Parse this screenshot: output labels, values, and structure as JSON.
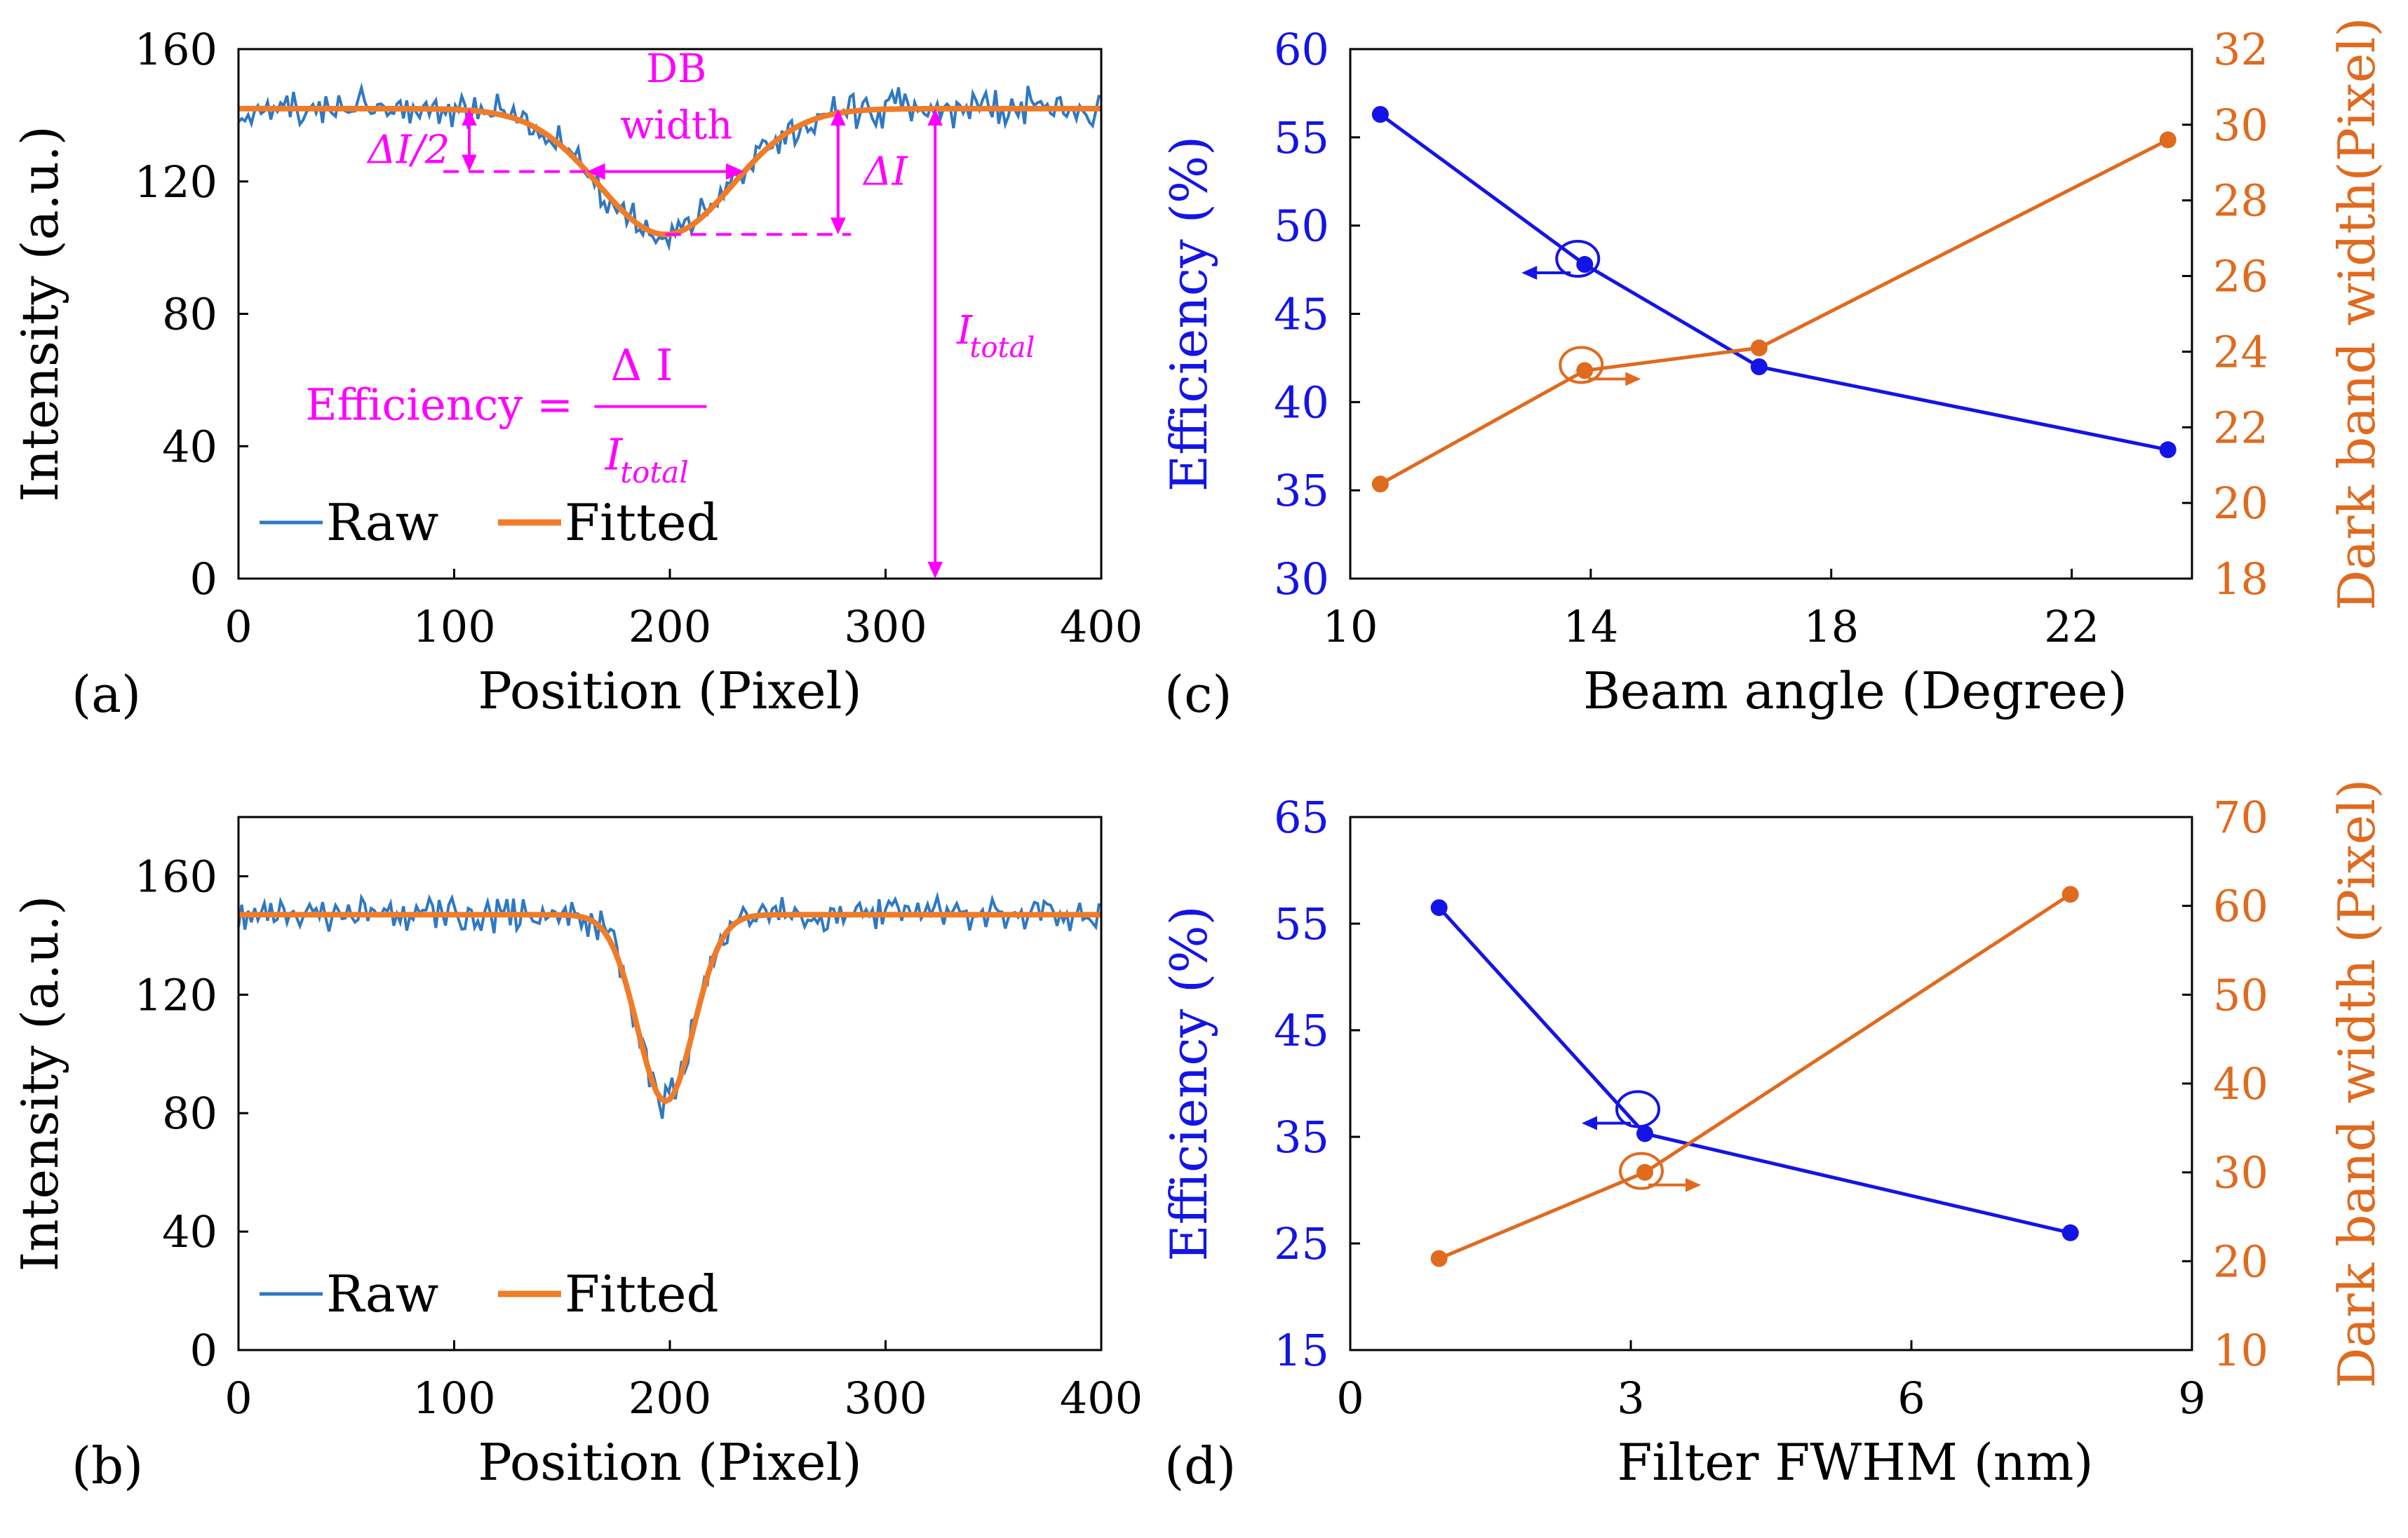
{
  "colors": {
    "raw": "#2f78c4",
    "fitted": "#f07c28",
    "efficiency": "#1414e6",
    "darkband": "#e06a1e",
    "annotation": "#ff00ff",
    "axis": "#000000"
  },
  "chart_data": [
    {
      "id": "a",
      "type": "line",
      "panel_label": "(a)",
      "xlabel": "Position (Pixel)",
      "ylabel": "Intensity (a.u.)",
      "xlim": [
        0,
        400
      ],
      "ylim": [
        0,
        160
      ],
      "xticks": [
        0,
        100,
        200,
        300,
        400
      ],
      "yticks": [
        0,
        40,
        80,
        120,
        160
      ],
      "legend": {
        "placement": "bottom-left",
        "entries": [
          "Raw",
          "Fitted"
        ]
      },
      "series": [
        {
          "name": "Raw",
          "noise_amplitude": 7
        },
        {
          "name": "Fitted",
          "baseline": 142,
          "minimum": 104,
          "center": 198,
          "sigma": 31
        }
      ],
      "annotations": {
        "db_label_1": "DB",
        "db_label_2": "width",
        "half_delta": "ΔI/2",
        "delta": "ΔI",
        "total": "I",
        "total_sub": "total",
        "efficiency_label": "Efficiency =",
        "numerator": "Δ I",
        "denominator": "I",
        "denominator_sub": "total"
      }
    },
    {
      "id": "b",
      "type": "line",
      "panel_label": "(b)",
      "xlabel": "Position (Pixel)",
      "ylabel": "Intensity (a.u.)",
      "xlim": [
        0,
        400
      ],
      "ylim": [
        0,
        180
      ],
      "xticks": [
        0,
        100,
        200,
        300,
        400
      ],
      "yticks": [
        0,
        40,
        80,
        120,
        160
      ],
      "legend": {
        "placement": "bottom-left",
        "entries": [
          "Raw",
          "Fitted"
        ]
      },
      "series": [
        {
          "name": "Raw",
          "noise_amplitude": 7
        },
        {
          "name": "Fitted",
          "baseline": 147,
          "minimum": 84,
          "center": 198,
          "sigma": 13
        }
      ]
    },
    {
      "id": "c",
      "type": "line",
      "panel_label": "(c)",
      "xlabel": "Beam angle (Degree)",
      "ylabel_left": "Efficiency (%)",
      "ylabel_right": "Dark band width(Pixel)",
      "xlim": [
        10,
        24
      ],
      "ylim_left": [
        30,
        60
      ],
      "ylim_right": [
        18,
        32
      ],
      "xticks": [
        10,
        14,
        18,
        22
      ],
      "yticks_left": [
        30,
        35,
        40,
        45,
        50,
        55,
        60
      ],
      "yticks_right": [
        18,
        20,
        22,
        24,
        26,
        28,
        30,
        32
      ],
      "x": [
        10.5,
        13.9,
        16.8,
        23.6
      ],
      "series": [
        {
          "name": "Efficiency",
          "axis": "left",
          "values": [
            56.3,
            47.8,
            42.0,
            37.3
          ]
        },
        {
          "name": "Dark band width",
          "axis": "right",
          "values": [
            20.5,
            23.5,
            24.1,
            29.6
          ]
        }
      ]
    },
    {
      "id": "d",
      "type": "line",
      "panel_label": "(d)",
      "xlabel": "Filter FWHM (nm)",
      "ylabel_left": "Efficiency (%)",
      "ylabel_right": "Dark band width (Pixel)",
      "xlim": [
        0,
        9
      ],
      "ylim_left": [
        15,
        65
      ],
      "ylim_right": [
        10,
        70
      ],
      "xticks": [
        0,
        3,
        6,
        9
      ],
      "yticks_left": [
        15,
        25,
        35,
        45,
        55,
        65
      ],
      "yticks_right": [
        10,
        20,
        30,
        40,
        50,
        60,
        70
      ],
      "x": [
        0.95,
        3.15,
        7.7
      ],
      "series": [
        {
          "name": "Efficiency",
          "axis": "left",
          "values": [
            56.5,
            35.3,
            26.0
          ]
        },
        {
          "name": "Dark band width",
          "axis": "right",
          "values": [
            20.3,
            30.0,
            61.3
          ]
        }
      ]
    }
  ]
}
